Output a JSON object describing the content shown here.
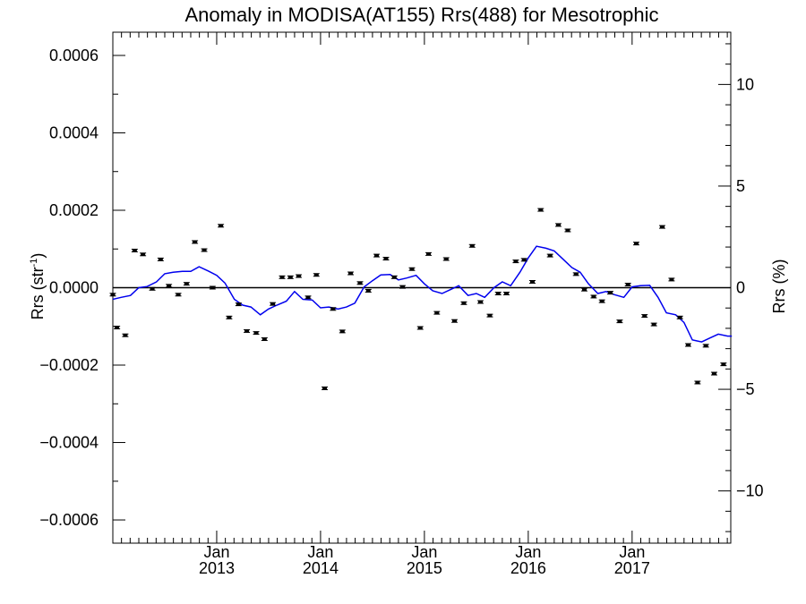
{
  "chart_data": {
    "type": "scatter",
    "title": "Anomaly in MODISA(AT155) Rrs(488) for Mesotrophic",
    "ylabel_left": "Rrs (str",
    "ylabel_left_sup": "-1",
    "ylabel_left_end": ")",
    "ylabel_right": "Rrs (%)",
    "xlim": [
      2012.0,
      2017.95
    ],
    "ylim_left": [
      -0.00066,
      0.00066
    ],
    "ylim_right": [
      -12.57,
      12.57
    ],
    "grid": false,
    "zero_line": true,
    "x_ticks": [
      {
        "x": 2013.0,
        "month": "Jan",
        "year": "2013"
      },
      {
        "x": 2014.0,
        "month": "Jan",
        "year": "2014"
      },
      {
        "x": 2015.0,
        "month": "Jan",
        "year": "2015"
      },
      {
        "x": 2016.0,
        "month": "Jan",
        "year": "2016"
      },
      {
        "x": 2017.0,
        "month": "Jan",
        "year": "2017"
      }
    ],
    "y_ticks_left": [
      {
        "v": 0.0006,
        "label": "0.0006"
      },
      {
        "v": 0.0004,
        "label": "0.0004"
      },
      {
        "v": 0.0002,
        "label": "0.0002"
      },
      {
        "v": 0.0,
        "label": "0.0000"
      },
      {
        "v": -0.0002,
        "label": "−0.0002"
      },
      {
        "v": -0.0004,
        "label": "−0.0004"
      },
      {
        "v": -0.0006,
        "label": "−0.0006"
      }
    ],
    "y_ticks_right": [
      {
        "v": 10,
        "label": "10"
      },
      {
        "v": 5,
        "label": "5"
      },
      {
        "v": 0,
        "label": "0"
      },
      {
        "v": -5,
        "label": "−5"
      },
      {
        "v": -10,
        "label": "−10"
      }
    ],
    "series": [
      {
        "kind": "monthly_anomaly_points",
        "color": "#000000",
        "x": [
          2012.0,
          2012.04,
          2012.12,
          2012.21,
          2012.29,
          2012.38,
          2012.46,
          2012.54,
          2012.63,
          2012.71,
          2012.79,
          2012.88,
          2012.96,
          2013.04,
          2013.12,
          2013.21,
          2013.29,
          2013.38,
          2013.46,
          2013.54,
          2013.63,
          2013.71,
          2013.79,
          2013.88,
          2013.96,
          2014.04,
          2014.12,
          2014.21,
          2014.29,
          2014.38,
          2014.46,
          2014.54,
          2014.63,
          2014.71,
          2014.79,
          2014.88,
          2014.96,
          2015.04,
          2015.12,
          2015.21,
          2015.29,
          2015.38,
          2015.46,
          2015.54,
          2015.63,
          2015.71,
          2015.79,
          2015.88,
          2015.96,
          2016.04,
          2016.12,
          2016.21,
          2016.29,
          2016.38,
          2016.46,
          2016.54,
          2016.63,
          2016.71,
          2016.79,
          2016.88,
          2016.96,
          2017.04,
          2017.12,
          2017.21,
          2017.29,
          2017.38,
          2017.46,
          2017.54,
          2017.63,
          2017.71,
          2017.79,
          2017.88,
          2017.96
        ],
        "y": [
          -1.8e-05,
          -0.000103,
          -0.000123,
          9.6e-05,
          8.6e-05,
          -3e-06,
          7.3e-05,
          5e-06,
          -1.8e-05,
          1e-05,
          0.000118,
          9.7e-05,
          0.0,
          0.00016,
          -7.7e-05,
          -4.3e-05,
          -0.000112,
          -0.000117,
          -0.000133,
          -4.2e-05,
          2.7e-05,
          2.7e-05,
          3e-05,
          -2.5e-05,
          3.3e-05,
          -0.00026,
          -5.5e-05,
          -0.000113,
          3.7e-05,
          1.2e-05,
          -8e-06,
          8.3e-05,
          7.5e-05,
          2.7e-05,
          2e-06,
          4.8e-05,
          -0.000104,
          8.7e-05,
          -6.5e-05,
          7.4e-05,
          -8.6e-05,
          -4e-05,
          0.000108,
          -3.7e-05,
          -7.2e-05,
          -1.5e-05,
          -1.5e-05,
          6.8e-05,
          7.2e-05,
          1.5e-05,
          0.000201,
          8.3e-05,
          0.000162,
          0.000148,
          3.5e-05,
          -5e-06,
          -2.3e-05,
          -3.5e-05,
          -1.3e-05,
          -8.7e-05,
          8e-06,
          0.000114,
          -7.3e-05,
          -9.5e-05,
          0.000157,
          2.1e-05,
          -7.7e-05,
          -0.000148,
          -0.000245,
          -0.00015,
          -0.000222,
          -0.000198,
          -0.000132
        ]
      },
      {
        "kind": "running_mean_line",
        "color": "#0000ee",
        "x": [
          2012.0,
          2012.08,
          2012.17,
          2012.25,
          2012.33,
          2012.42,
          2012.5,
          2012.58,
          2012.67,
          2012.75,
          2012.83,
          2012.92,
          2013.0,
          2013.08,
          2013.17,
          2013.25,
          2013.33,
          2013.42,
          2013.5,
          2013.58,
          2013.67,
          2013.75,
          2013.83,
          2013.92,
          2014.0,
          2014.08,
          2014.17,
          2014.25,
          2014.33,
          2014.42,
          2014.5,
          2014.58,
          2014.67,
          2014.75,
          2014.83,
          2014.92,
          2015.0,
          2015.08,
          2015.17,
          2015.25,
          2015.33,
          2015.42,
          2015.5,
          2015.58,
          2015.67,
          2015.75,
          2015.83,
          2015.92,
          2016.0,
          2016.08,
          2016.17,
          2016.25,
          2016.33,
          2016.42,
          2016.5,
          2016.58,
          2016.67,
          2016.75,
          2016.83,
          2016.92,
          2017.0,
          2017.08,
          2017.17,
          2017.25,
          2017.33,
          2017.42,
          2017.5,
          2017.58,
          2017.67,
          2017.75,
          2017.83,
          2017.92,
          2017.96
        ],
        "y": [
          -3e-05,
          -2.5e-05,
          -2e-05,
          0.0,
          3e-06,
          1.5e-05,
          3.6e-05,
          4e-05,
          4.2e-05,
          4.2e-05,
          5.4e-05,
          4.3e-05,
          3.2e-05,
          1.2e-05,
          -3e-05,
          -4.5e-05,
          -5e-05,
          -7e-05,
          -5.5e-05,
          -4.5e-05,
          -3.5e-05,
          -1e-05,
          -3e-05,
          -3.2e-05,
          -5.2e-05,
          -5e-05,
          -5.5e-05,
          -5e-05,
          -4e-05,
          2e-06,
          1.8e-05,
          3.3e-05,
          3.4e-05,
          2e-05,
          2.5e-05,
          3.2e-05,
          1e-05,
          -8e-06,
          -1.5e-05,
          -5e-06,
          5e-06,
          -2e-05,
          -1.5e-05,
          -2.5e-05,
          0.0,
          1.5e-05,
          5e-06,
          4e-05,
          7.7e-05,
          0.000107,
          0.000102,
          9.5e-05,
          7.5e-05,
          5.2e-05,
          4e-05,
          1e-05,
          -1.5e-05,
          -1e-05,
          -1.8e-05,
          -2.5e-05,
          2e-06,
          5e-06,
          6e-06,
          -2.5e-05,
          -6.5e-05,
          -7e-05,
          -9e-05,
          -0.000135,
          -0.00014,
          -0.00013,
          -0.00012,
          -0.000125,
          -0.000125
        ]
      }
    ]
  }
}
